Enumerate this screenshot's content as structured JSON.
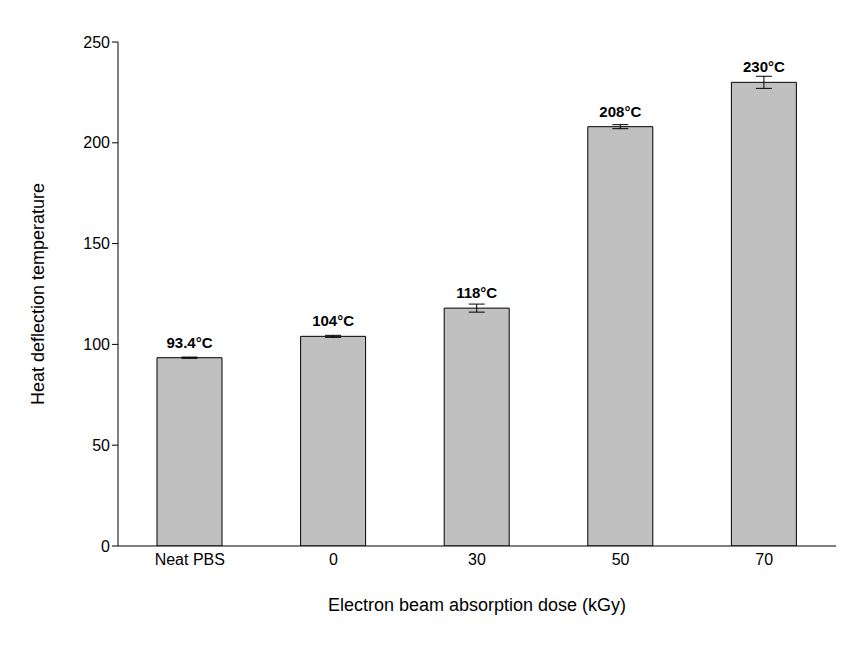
{
  "chart_data": {
    "type": "bar",
    "categories": [
      "Neat PBS",
      "0",
      "30",
      "50",
      "70"
    ],
    "values": [
      93.4,
      104,
      118,
      208,
      230
    ],
    "value_labels": [
      "93.4°C",
      "104°C",
      "118°C",
      "208°C",
      "230°C"
    ],
    "errors": [
      0.3,
      0.5,
      2,
      1,
      3
    ],
    "color": "#c0c0c0",
    "xlabel": "Electron beam absorption dose (kGy)",
    "ylabel": "Heat deflection temperature",
    "ylim": [
      0,
      250
    ],
    "yticks": [
      0,
      50,
      100,
      150,
      200,
      250
    ],
    "grid": false,
    "data_labels": true
  }
}
